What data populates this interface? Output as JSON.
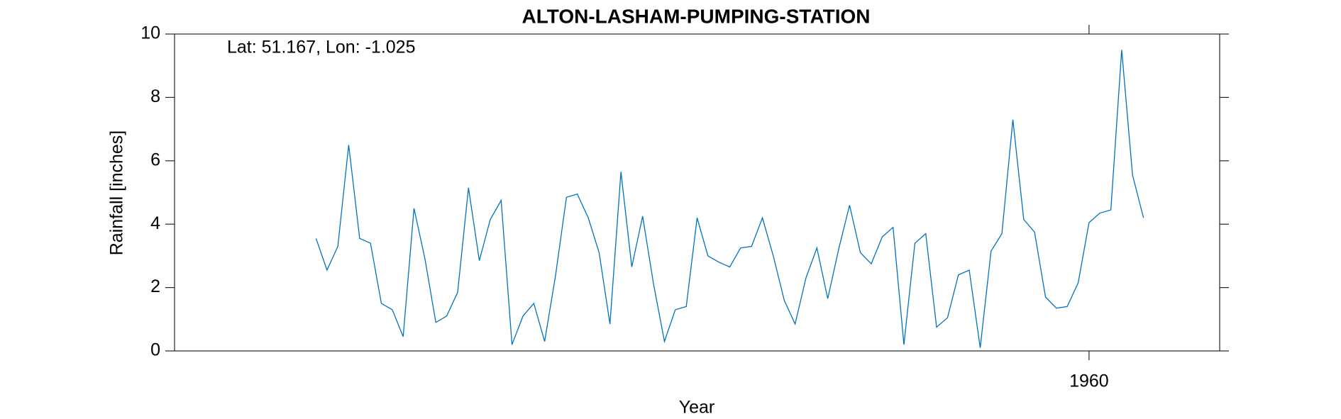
{
  "chart_data": {
    "type": "line",
    "title": "ALTON-LASHAM-PUMPING-STATION",
    "annotation": "Lat: 51.167, Lon: -1.025",
    "x_label": "Year",
    "y_label": "Rainfall [inches]",
    "x": [
      1954.083,
      1954.167,
      1954.25,
      1954.333,
      1954.417,
      1954.5,
      1954.583,
      1954.667,
      1954.75,
      1954.833,
      1954.917,
      1955,
      1955.083,
      1955.167,
      1955.25,
      1955.333,
      1955.417,
      1955.5,
      1955.583,
      1955.667,
      1955.75,
      1955.833,
      1955.917,
      1956,
      1956.083,
      1956.167,
      1956.25,
      1956.333,
      1956.417,
      1956.5,
      1956.583,
      1956.667,
      1956.75,
      1956.833,
      1956.917,
      1957,
      1957.083,
      1957.167,
      1957.25,
      1957.333,
      1957.417,
      1957.5,
      1957.583,
      1957.667,
      1957.75,
      1957.833,
      1957.917,
      1958,
      1958.083,
      1958.167,
      1958.25,
      1958.333,
      1958.417,
      1958.5,
      1958.583,
      1958.667,
      1958.75,
      1958.833,
      1958.917,
      1959,
      1959.083,
      1959.167,
      1959.25,
      1959.333,
      1959.417,
      1959.5,
      1959.583,
      1959.667,
      1959.75,
      1959.833,
      1959.917,
      1960,
      1960.083,
      1960.167,
      1960.25,
      1960.333,
      1960.417
    ],
    "series": [
      {
        "name": "Rainfall",
        "color": "#0072bd",
        "values": [
          3.55,
          2.55,
          3.3,
          6.5,
          3.55,
          3.4,
          1.5,
          1.3,
          0.45,
          4.5,
          2.9,
          0.9,
          1.1,
          1.85,
          5.15,
          2.85,
          4.15,
          4.75,
          0.2,
          1.1,
          1.5,
          0.3,
          2.4,
          4.85,
          4.95,
          4.2,
          3.1,
          0.85,
          5.65,
          2.65,
          4.25,
          2.1,
          0.3,
          1.3,
          1.4,
          4.2,
          3.0,
          2.8,
          2.65,
          3.25,
          3.3,
          4.2,
          3.0,
          1.6,
          0.85,
          2.3,
          3.25,
          1.65,
          3.2,
          4.6,
          3.1,
          2.75,
          3.6,
          3.9,
          0.2,
          3.4,
          3.7,
          0.75,
          1.05,
          2.4,
          2.55,
          0.1,
          3.15,
          3.7,
          7.3,
          4.15,
          3.75,
          1.7,
          1.35,
          1.4,
          2.15,
          4.05,
          4.35,
          4.45,
          9.5,
          5.55,
          4.2
        ]
      }
    ],
    "xlim": [
      1953,
      1961
    ],
    "xticks": [
      1960
    ],
    "ylim": [
      0,
      10
    ],
    "yticks": [
      0,
      2,
      4,
      6,
      8,
      10
    ],
    "grid": false
  }
}
